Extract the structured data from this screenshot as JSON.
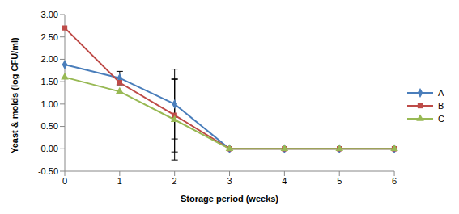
{
  "chart_data": {
    "type": "line",
    "x_label": "Storage period (weeks)",
    "y_label": "Yeast & molds (log CFU/ml)",
    "categories": [
      "0",
      "1",
      "2",
      "3",
      "4",
      "5",
      "6"
    ],
    "ylim": [
      -0.5,
      3.0
    ],
    "yticks": [
      {
        "value": -0.5,
        "label": "-0.50"
      },
      {
        "value": 0,
        "label": "0.00"
      },
      {
        "value": 0.5,
        "label": "0.50"
      },
      {
        "value": 1.0,
        "label": "1.00"
      },
      {
        "value": 1.5,
        "label": "1.50"
      },
      {
        "value": 2.0,
        "label": "2.00"
      },
      {
        "value": 2.5,
        "label": "2.50"
      },
      {
        "value": 3.0,
        "label": "3.00"
      }
    ],
    "grid": false,
    "legend": "right",
    "series": [
      {
        "name": "A",
        "color": "#4a7ebb",
        "marker": "diamond",
        "values": [
          1.88,
          1.58,
          1.0,
          0,
          0,
          0,
          0
        ],
        "error": [
          null,
          0.15,
          0.78,
          null,
          null,
          null,
          null
        ]
      },
      {
        "name": "B",
        "color": "#be4b48",
        "marker": "square",
        "values": [
          2.7,
          1.48,
          0.75,
          0,
          0,
          0,
          0
        ],
        "error": [
          null,
          null,
          0.82,
          null,
          null,
          null,
          null
        ]
      },
      {
        "name": "C",
        "color": "#98b954",
        "marker": "triangle",
        "values": [
          1.6,
          1.28,
          0.65,
          0,
          0,
          0,
          0
        ],
        "error": [
          null,
          null,
          0.9,
          null,
          null,
          null,
          null
        ]
      }
    ]
  }
}
